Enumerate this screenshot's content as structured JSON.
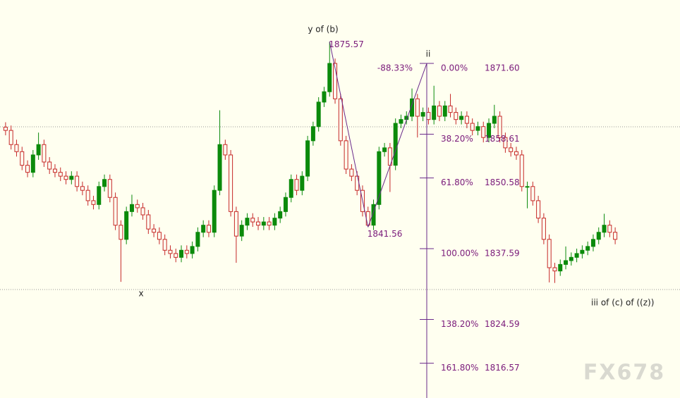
{
  "chart_data": {
    "type": "candlestick",
    "ylim": [
      1810.18,
      1883.24
    ],
    "up_color": "#0b8a0b",
    "down_color": "#c62828",
    "hlines": [
      1859.96,
      1830.09
    ],
    "ohlc": [
      [
        1859.9,
        1860.8,
        1858.4,
        1859.3
      ],
      [
        1859.3,
        1860.2,
        1855.8,
        1856.7
      ],
      [
        1856.7,
        1857.6,
        1854.5,
        1855.4
      ],
      [
        1855.4,
        1856.3,
        1852.0,
        1852.9
      ],
      [
        1852.9,
        1853.8,
        1850.7,
        1851.6
      ],
      [
        1851.6,
        1855.7,
        1850.7,
        1854.8
      ],
      [
        1854.8,
        1858.9,
        1853.9,
        1856.7
      ],
      [
        1856.7,
        1857.6,
        1852.6,
        1853.5
      ],
      [
        1853.5,
        1854.4,
        1851.3,
        1852.2
      ],
      [
        1852.2,
        1853.1,
        1850.7,
        1851.6
      ],
      [
        1851.6,
        1852.5,
        1850.0,
        1850.9
      ],
      [
        1850.9,
        1851.8,
        1849.4,
        1850.3
      ],
      [
        1850.3,
        1851.8,
        1849.4,
        1850.9
      ],
      [
        1850.9,
        1851.8,
        1848.1,
        1849.0
      ],
      [
        1849.0,
        1849.9,
        1847.4,
        1848.3
      ],
      [
        1848.3,
        1849.2,
        1845.5,
        1846.4
      ],
      [
        1846.4,
        1847.3,
        1844.8,
        1845.7
      ],
      [
        1845.7,
        1849.9,
        1844.8,
        1849.0
      ],
      [
        1849.0,
        1851.2,
        1848.1,
        1850.3
      ],
      [
        1850.3,
        1851.2,
        1846.1,
        1847.0
      ],
      [
        1847.0,
        1847.9,
        1841.0,
        1841.9
      ],
      [
        1841.9,
        1842.8,
        1831.5,
        1839.3
      ],
      [
        1839.3,
        1845.3,
        1838.4,
        1844.4
      ],
      [
        1844.4,
        1847.5,
        1843.5,
        1845.7
      ],
      [
        1845.7,
        1846.6,
        1844.2,
        1845.1
      ],
      [
        1845.1,
        1846.0,
        1842.9,
        1843.8
      ],
      [
        1843.8,
        1844.7,
        1840.3,
        1841.2
      ],
      [
        1841.2,
        1842.1,
        1839.7,
        1840.6
      ],
      [
        1840.6,
        1841.5,
        1838.4,
        1839.3
      ],
      [
        1839.3,
        1840.2,
        1836.4,
        1837.3
      ],
      [
        1837.3,
        1838.2,
        1835.8,
        1836.7
      ],
      [
        1836.7,
        1837.6,
        1835.1,
        1836.0
      ],
      [
        1836.0,
        1838.2,
        1835.1,
        1837.3
      ],
      [
        1837.3,
        1838.2,
        1835.8,
        1836.7
      ],
      [
        1836.7,
        1838.9,
        1835.8,
        1838.0
      ],
      [
        1838.0,
        1841.5,
        1837.1,
        1840.6
      ],
      [
        1840.6,
        1842.8,
        1839.7,
        1841.9
      ],
      [
        1841.9,
        1842.8,
        1839.7,
        1840.6
      ],
      [
        1840.6,
        1849.2,
        1839.7,
        1848.3
      ],
      [
        1848.3,
        1863.0,
        1847.4,
        1856.7
      ],
      [
        1856.7,
        1857.6,
        1853.9,
        1854.8
      ],
      [
        1854.8,
        1855.7,
        1843.5,
        1844.4
      ],
      [
        1844.4,
        1845.3,
        1835.0,
        1839.9
      ],
      [
        1839.9,
        1842.8,
        1839.0,
        1841.9
      ],
      [
        1841.9,
        1844.1,
        1841.0,
        1843.2
      ],
      [
        1843.2,
        1844.1,
        1841.6,
        1842.5
      ],
      [
        1842.5,
        1843.4,
        1841.0,
        1841.9
      ],
      [
        1841.9,
        1843.4,
        1841.0,
        1842.5
      ],
      [
        1842.5,
        1843.4,
        1841.0,
        1841.9
      ],
      [
        1841.9,
        1844.1,
        1841.0,
        1843.2
      ],
      [
        1843.2,
        1845.3,
        1842.3,
        1844.4
      ],
      [
        1844.4,
        1847.9,
        1843.5,
        1847.0
      ],
      [
        1847.0,
        1851.2,
        1846.1,
        1850.3
      ],
      [
        1850.3,
        1851.2,
        1847.4,
        1848.3
      ],
      [
        1848.3,
        1851.8,
        1847.4,
        1850.9
      ],
      [
        1850.9,
        1858.3,
        1850.0,
        1857.4
      ],
      [
        1857.4,
        1860.9,
        1856.5,
        1860.0
      ],
      [
        1860.0,
        1865.4,
        1859.1,
        1864.5
      ],
      [
        1864.5,
        1867.3,
        1863.6,
        1866.4
      ],
      [
        1866.4,
        1875.57,
        1865.5,
        1871.6
      ],
      [
        1871.6,
        1872.5,
        1864.2,
        1865.1
      ],
      [
        1865.1,
        1866.0,
        1856.5,
        1857.4
      ],
      [
        1857.4,
        1858.3,
        1851.3,
        1852.2
      ],
      [
        1852.2,
        1853.1,
        1850.0,
        1850.9
      ],
      [
        1850.9,
        1851.8,
        1847.4,
        1848.3
      ],
      [
        1848.3,
        1849.2,
        1843.5,
        1844.4
      ],
      [
        1844.4,
        1845.3,
        1841.56,
        1841.9
      ],
      [
        1841.9,
        1846.6,
        1841.0,
        1845.7
      ],
      [
        1845.7,
        1856.3,
        1844.8,
        1855.4
      ],
      [
        1855.4,
        1857.0,
        1854.5,
        1856.1
      ],
      [
        1856.1,
        1857.0,
        1848.0,
        1852.9
      ],
      [
        1852.9,
        1861.5,
        1852.0,
        1860.6
      ],
      [
        1860.6,
        1862.2,
        1859.7,
        1861.3
      ],
      [
        1861.3,
        1862.8,
        1860.4,
        1861.9
      ],
      [
        1861.9,
        1867.0,
        1861.0,
        1865.1
      ],
      [
        1865.1,
        1866.0,
        1858.0,
        1861.9
      ],
      [
        1861.9,
        1863.5,
        1861.0,
        1862.6
      ],
      [
        1862.6,
        1863.5,
        1860.4,
        1861.3
      ],
      [
        1861.3,
        1867.5,
        1860.4,
        1863.8
      ],
      [
        1863.8,
        1864.7,
        1861.0,
        1861.9
      ],
      [
        1861.9,
        1864.7,
        1861.0,
        1863.8
      ],
      [
        1863.8,
        1866.0,
        1861.7,
        1862.6
      ],
      [
        1862.6,
        1863.5,
        1860.4,
        1861.3
      ],
      [
        1861.3,
        1862.8,
        1860.4,
        1861.9
      ],
      [
        1861.9,
        1862.8,
        1859.7,
        1860.6
      ],
      [
        1860.6,
        1861.5,
        1858.4,
        1859.3
      ],
      [
        1859.3,
        1860.9,
        1858.4,
        1860.0
      ],
      [
        1860.0,
        1860.9,
        1857.1,
        1858.0
      ],
      [
        1858.0,
        1861.5,
        1857.1,
        1860.6
      ],
      [
        1860.6,
        1864.0,
        1859.7,
        1861.9
      ],
      [
        1861.9,
        1862.8,
        1857.1,
        1858.0
      ],
      [
        1858.0,
        1858.9,
        1855.2,
        1856.1
      ],
      [
        1856.1,
        1857.0,
        1854.5,
        1855.4
      ],
      [
        1855.4,
        1856.3,
        1853.9,
        1854.8
      ],
      [
        1854.8,
        1855.7,
        1848.1,
        1849.0
      ],
      [
        1849.0,
        1849.9,
        1845.0,
        1849.0
      ],
      [
        1849.0,
        1849.9,
        1845.5,
        1846.4
      ],
      [
        1846.4,
        1847.3,
        1842.3,
        1843.2
      ],
      [
        1843.2,
        1844.1,
        1838.4,
        1839.3
      ],
      [
        1839.3,
        1840.2,
        1831.4,
        1834.1
      ],
      [
        1834.1,
        1835.0,
        1831.3,
        1833.5
      ],
      [
        1833.5,
        1835.6,
        1832.6,
        1834.7
      ],
      [
        1834.7,
        1838.0,
        1833.8,
        1835.4
      ],
      [
        1835.4,
        1836.9,
        1834.5,
        1836.0
      ],
      [
        1836.0,
        1837.6,
        1835.1,
        1836.7
      ],
      [
        1836.7,
        1838.2,
        1835.8,
        1837.3
      ],
      [
        1837.3,
        1838.9,
        1836.4,
        1838.0
      ],
      [
        1838.0,
        1840.2,
        1837.1,
        1839.3
      ],
      [
        1839.3,
        1841.5,
        1838.4,
        1840.6
      ],
      [
        1840.6,
        1844.0,
        1839.7,
        1841.9
      ],
      [
        1841.9,
        1842.8,
        1839.7,
        1840.6
      ],
      [
        1840.6,
        1841.5,
        1838.4,
        1839.3
      ]
    ],
    "swing_high": 1875.57,
    "swing_low": 1841.56,
    "retrace_label": "-88.33%",
    "fib_levels": [
      {
        "ratio": {
          "value": 0,
          "label": "0.00%"
        },
        "price": {
          "value": 1871.6,
          "label": "1871.60"
        }
      },
      {
        "ratio": {
          "value": 38.2,
          "label": "38.20%"
        },
        "price": 1858.61
      },
      {
        "ratio": {
          "value": 61.8,
          "label": "61.80%"
        },
        "price": 1850.58
      },
      {
        "ratio": {
          "value": 100,
          "label": "100.00%"
        },
        "price": 1837.59
      },
      {
        "ratio": {
          "value": 138.2,
          "label": "138.20%"
        },
        "price": 1824.59
      },
      {
        "ratio": {
          "value": 161.8,
          "label": "161.80%"
        },
        "price": 1816.57
      }
    ],
    "annotations": {
      "wave_b": "y of (b)",
      "wave_ii": "ii",
      "wave_x": "x",
      "wave_iii": "iii of (c) of ((z))"
    },
    "watermark": "FX678"
  }
}
